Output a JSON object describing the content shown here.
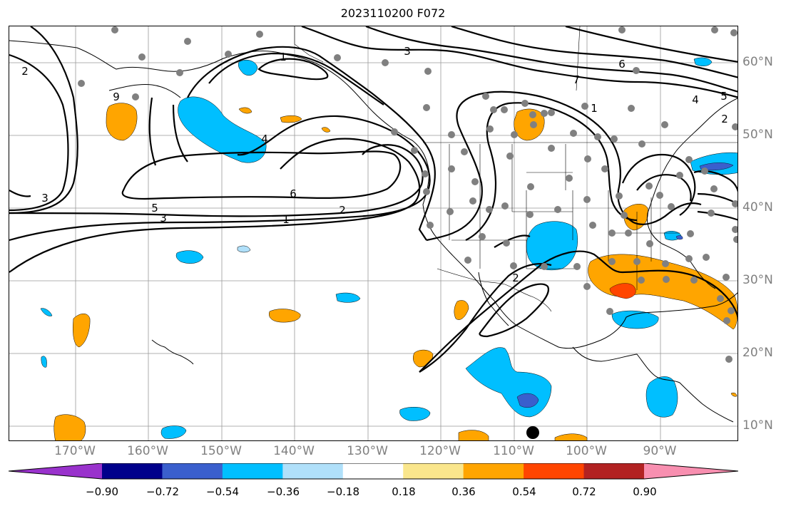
{
  "title": "2023110200 F072",
  "lon_labels": [
    "170°W",
    "160°W",
    "150°W",
    "140°W",
    "130°W",
    "120°W",
    "110°W",
    "100°W",
    "90°W"
  ],
  "lat_labels": [
    "60°N",
    "50°N",
    "40°N",
    "30°N",
    "20°N",
    "10°N"
  ],
  "contour_labels": [
    "1",
    "1",
    "1",
    "2",
    "2",
    "2",
    "2",
    "3",
    "3",
    "3",
    "4",
    "4",
    "5",
    "5",
    "6",
    "6",
    "9",
    "7"
  ],
  "colorbar": {
    "tick_labels": [
      "−0.90",
      "−0.72",
      "−0.54",
      "−0.36",
      "−0.18",
      "0.18",
      "0.36",
      "0.54",
      "0.72",
      "0.90"
    ],
    "colors": [
      "#9932cc",
      "#00008b",
      "#3a5fcd",
      "#00bfff",
      "#b0e0fa",
      "#ffffff",
      "#fae68c",
      "#ffa500",
      "#ff4500",
      "#b22222",
      "#f88fb0"
    ]
  },
  "colors": {
    "positive_fill": "#ffa500",
    "positive_strong": "#ff4500",
    "negative_fill": "#00bfff",
    "negative_strong": "#3a5fcd",
    "station_dot": "#808080",
    "grid": "#999999"
  }
}
